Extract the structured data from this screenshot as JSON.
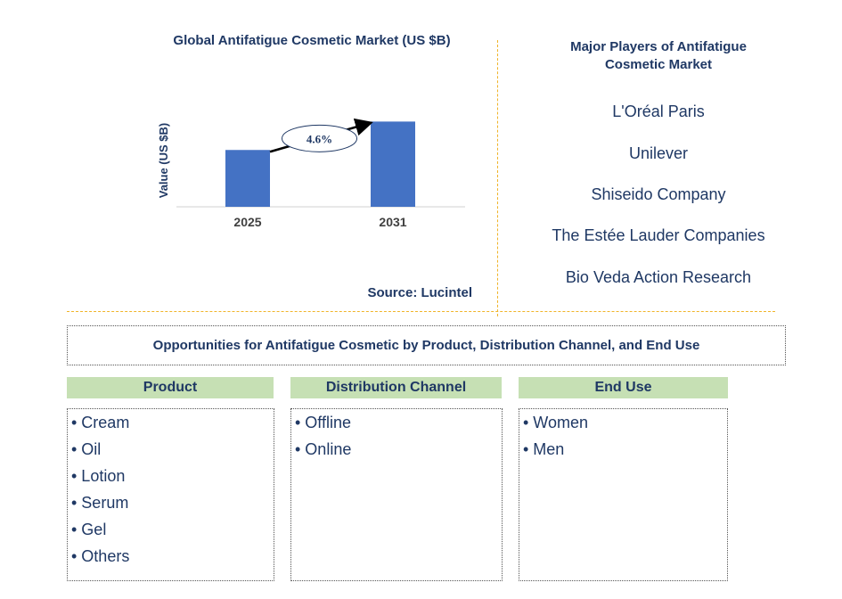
{
  "chart_data": {
    "type": "bar",
    "title": "Global Antifatigue Cosmetic Market (US $B)",
    "categories": [
      "2025",
      "2031"
    ],
    "values": [
      1.0,
      1.5
    ],
    "ylabel": "Value (US $B)",
    "xlabel": "",
    "ylim": [
      0,
      1.6
    ],
    "annotation": "4.6%",
    "bar_color": "#4472c4",
    "source": "Source: Lucintel"
  },
  "players": {
    "title_line1": "Major Players of Antifatigue",
    "title_line2": "Cosmetic Market",
    "items": [
      "L'Oréal Paris",
      "Unilever",
      "Shiseido Company",
      "The Estée Lauder Companies",
      "Bio Veda Action Research"
    ]
  },
  "opportunities": {
    "title": "Opportunities for Antifatigue Cosmetic by Product, Distribution Channel, and End Use",
    "segments": [
      {
        "header": "Product",
        "items": [
          "• Cream",
          "• Oil",
          "• Lotion",
          "• Serum",
          "• Gel",
          "• Others"
        ]
      },
      {
        "header": "Distribution Channel",
        "items": [
          "• Offline",
          "• Online"
        ]
      },
      {
        "header": "End Use",
        "items": [
          "• Women",
          "• Men"
        ]
      }
    ]
  }
}
